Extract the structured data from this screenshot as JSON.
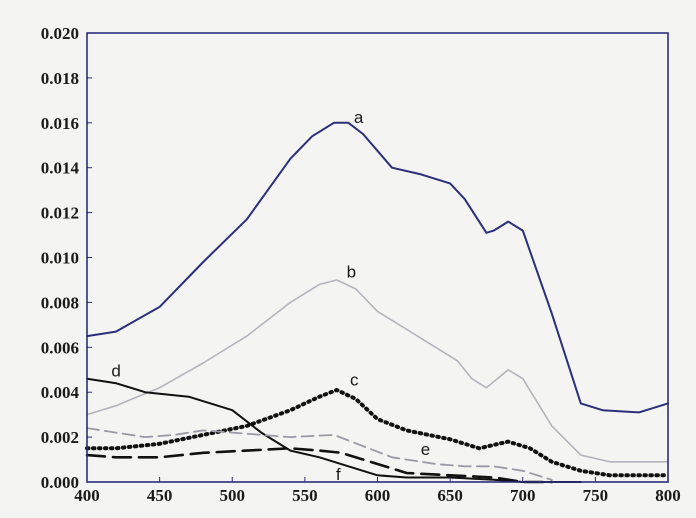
{
  "chart_data": {
    "type": "line",
    "title": "",
    "xlabel": "",
    "ylabel": "",
    "xlim": [
      400,
      800
    ],
    "ylim": [
      0,
      0.02
    ],
    "grid": false,
    "x_ticks": [
      "400",
      "450",
      "500",
      "550",
      "600",
      "650",
      "700",
      "750",
      "800"
    ],
    "y_ticks": [
      "0.000",
      "0.002",
      "0.004",
      "0.006",
      "0.008",
      "0.010",
      "0.012",
      "0.014",
      "0.016",
      "0.018",
      "0.020"
    ],
    "series": [
      {
        "name": "a",
        "color": "#2b2f7a",
        "style": "solid",
        "points": [
          [
            400,
            0.0065
          ],
          [
            420,
            0.0067
          ],
          [
            450,
            0.0078
          ],
          [
            480,
            0.0098
          ],
          [
            510,
            0.0117
          ],
          [
            540,
            0.0144
          ],
          [
            555,
            0.0154
          ],
          [
            570,
            0.016
          ],
          [
            580,
            0.016
          ],
          [
            590,
            0.0155
          ],
          [
            610,
            0.014
          ],
          [
            630,
            0.0137
          ],
          [
            650,
            0.0133
          ],
          [
            660,
            0.0126
          ],
          [
            675,
            0.0111
          ],
          [
            680,
            0.0112
          ],
          [
            690,
            0.0116
          ],
          [
            700,
            0.0112
          ],
          [
            720,
            0.0075
          ],
          [
            740,
            0.0035
          ],
          [
            755,
            0.0032
          ],
          [
            780,
            0.0031
          ],
          [
            800,
            0.0035
          ]
        ]
      },
      {
        "name": "b",
        "color": "#b4b4bc",
        "style": "solid",
        "points": [
          [
            400,
            0.003
          ],
          [
            420,
            0.0034
          ],
          [
            450,
            0.0042
          ],
          [
            480,
            0.0053
          ],
          [
            510,
            0.0065
          ],
          [
            540,
            0.008
          ],
          [
            560,
            0.0088
          ],
          [
            572,
            0.009
          ],
          [
            585,
            0.0086
          ],
          [
            600,
            0.0076
          ],
          [
            620,
            0.0068
          ],
          [
            640,
            0.006
          ],
          [
            655,
            0.0054
          ],
          [
            665,
            0.0046
          ],
          [
            675,
            0.0042
          ],
          [
            690,
            0.005
          ],
          [
            700,
            0.0046
          ],
          [
            720,
            0.0025
          ],
          [
            740,
            0.0012
          ],
          [
            760,
            0.0009
          ],
          [
            800,
            0.0009
          ]
        ]
      },
      {
        "name": "c",
        "color": "#111111",
        "style": "dotted",
        "points": [
          [
            400,
            0.0015
          ],
          [
            420,
            0.0015
          ],
          [
            450,
            0.0017
          ],
          [
            480,
            0.0021
          ],
          [
            510,
            0.0025
          ],
          [
            540,
            0.0032
          ],
          [
            560,
            0.0038
          ],
          [
            572,
            0.0041
          ],
          [
            585,
            0.0037
          ],
          [
            600,
            0.0028
          ],
          [
            620,
            0.0023
          ],
          [
            650,
            0.0019
          ],
          [
            670,
            0.0015
          ],
          [
            690,
            0.0018
          ],
          [
            705,
            0.0015
          ],
          [
            720,
            0.0009
          ],
          [
            740,
            0.0005
          ],
          [
            760,
            0.0003
          ],
          [
            800,
            0.0003
          ]
        ]
      },
      {
        "name": "d",
        "color": "#111111",
        "style": "solid",
        "points": [
          [
            400,
            0.0046
          ],
          [
            420,
            0.0044
          ],
          [
            440,
            0.004
          ],
          [
            470,
            0.0038
          ],
          [
            500,
            0.0032
          ],
          [
            520,
            0.0022
          ],
          [
            540,
            0.0014
          ],
          [
            560,
            0.0011
          ],
          [
            580,
            0.0007
          ],
          [
            600,
            0.0003
          ],
          [
            620,
            0.0002
          ],
          [
            650,
            0.0002
          ],
          [
            680,
            0.0001
          ],
          [
            700,
            0.0
          ],
          [
            720,
            0.0
          ],
          [
            740,
            0.0
          ]
        ]
      },
      {
        "name": "e",
        "color": "#9a9aa6",
        "style": "dashed",
        "points": [
          [
            400,
            0.0024
          ],
          [
            420,
            0.0022
          ],
          [
            440,
            0.002
          ],
          [
            460,
            0.0021
          ],
          [
            480,
            0.0023
          ],
          [
            500,
            0.0022
          ],
          [
            520,
            0.0021
          ],
          [
            540,
            0.002
          ],
          [
            570,
            0.0021
          ],
          [
            590,
            0.0016
          ],
          [
            610,
            0.0011
          ],
          [
            640,
            0.0008
          ],
          [
            660,
            0.0007
          ],
          [
            680,
            0.0007
          ],
          [
            700,
            0.0005
          ],
          [
            720,
            0.0001
          ]
        ]
      },
      {
        "name": "f",
        "color": "#111111",
        "style": "longdash",
        "points": [
          [
            400,
            0.0012
          ],
          [
            420,
            0.0011
          ],
          [
            450,
            0.0011
          ],
          [
            480,
            0.0013
          ],
          [
            510,
            0.0014
          ],
          [
            540,
            0.0015
          ],
          [
            560,
            0.0014
          ],
          [
            575,
            0.0013
          ],
          [
            600,
            0.0008
          ],
          [
            620,
            0.0004
          ],
          [
            650,
            0.0003
          ],
          [
            680,
            0.0002
          ],
          [
            700,
            0.0
          ],
          [
            720,
            0.0
          ]
        ]
      }
    ],
    "labels": [
      {
        "text": "a",
        "x": 587,
        "y": 0.016
      },
      {
        "text": "b",
        "x": 582,
        "y": 0.0091
      },
      {
        "text": "c",
        "x": 584,
        "y": 0.0043
      },
      {
        "text": "d",
        "x": 420,
        "y": 0.0047
      },
      {
        "text": "e",
        "x": 633,
        "y": 0.0012
      },
      {
        "text": "f",
        "x": 573,
        "y": 0.0001
      }
    ]
  }
}
